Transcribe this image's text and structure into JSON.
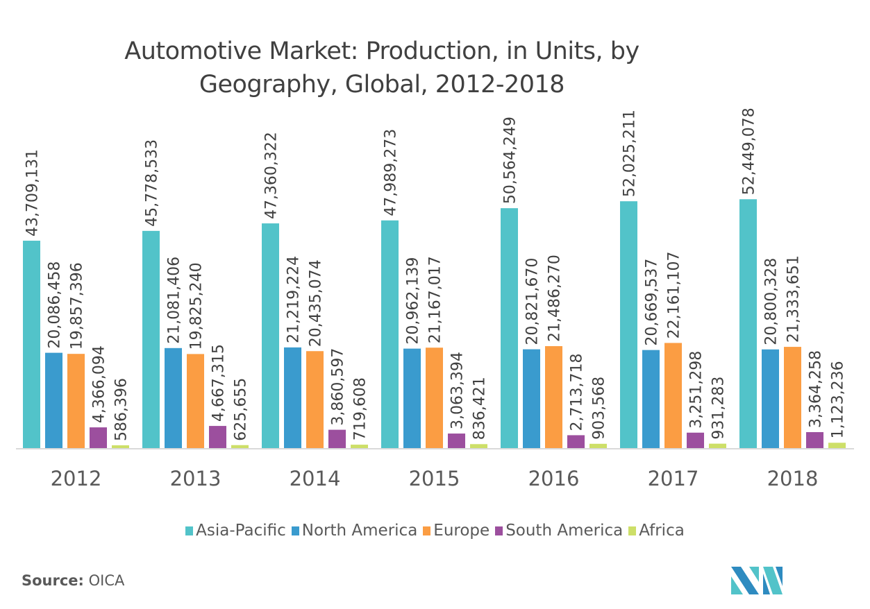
{
  "chart_data": {
    "type": "bar",
    "title": "Automotive Market: Production, in Units, by Geography, Global, 2012-2018",
    "title_lines": [
      "Automotive Market: Production, in Units, by",
      "Geography, Global, 2012-2018"
    ],
    "xlabel": "",
    "ylabel": "",
    "ylim": [
      0,
      55000000
    ],
    "grid": false,
    "legend_position": "bottom",
    "categories": [
      "2012",
      "2013",
      "2014",
      "2015",
      "2016",
      "2017",
      "2018"
    ],
    "series": [
      {
        "name": "Asia-Pacific",
        "color": "#52c3c9",
        "values": [
          43709131,
          45778533,
          47360322,
          47989273,
          50564249,
          52025211,
          52449078
        ],
        "labels": [
          "43,709,131",
          "45,778,533",
          "47,360,322",
          "47,989,273",
          "50,564,249",
          "52,025,211",
          "52,449,078"
        ]
      },
      {
        "name": "North America",
        "color": "#3a9bce",
        "values": [
          20086458,
          21081406,
          21219224,
          20962139,
          20821670,
          20669537,
          20800328
        ],
        "labels": [
          "20,086,458",
          "21,081,406",
          "21,219,224",
          "20,962,139",
          "20,821,670",
          "20,669,537",
          "20,800,328"
        ]
      },
      {
        "name": "Europe",
        "color": "#fb9d43",
        "values": [
          19857396,
          19825240,
          20435074,
          21167017,
          21486270,
          22161107,
          21333651
        ],
        "labels": [
          "19,857,396",
          "19,825,240",
          "20,435,074",
          "21,167,017",
          "21,486,270",
          "22,161,107",
          "21,333,651"
        ]
      },
      {
        "name": "South America",
        "color": "#9c4f9e",
        "values": [
          4366094,
          4667315,
          3860597,
          3063394,
          2713718,
          3251298,
          3364258
        ],
        "labels": [
          "4,366,094",
          "4,667,315",
          "3,860,597",
          "3,063,394",
          "2,713,718",
          "3,251,298",
          "3,364,258"
        ]
      },
      {
        "name": "Africa",
        "color": "#cddf68",
        "values": [
          586396,
          625655,
          719608,
          836421,
          903568,
          931283,
          1123236
        ],
        "labels": [
          "586,396",
          "625,655",
          "719,608",
          "836,421",
          "903,568",
          "931,283",
          "1,123,236"
        ]
      }
    ]
  },
  "source": {
    "label": "Source:",
    "value": "OICA"
  },
  "logo": {
    "name": "Mordor Intelligence logo",
    "colors": [
      "#2e8bc0",
      "#52c3c9"
    ]
  }
}
